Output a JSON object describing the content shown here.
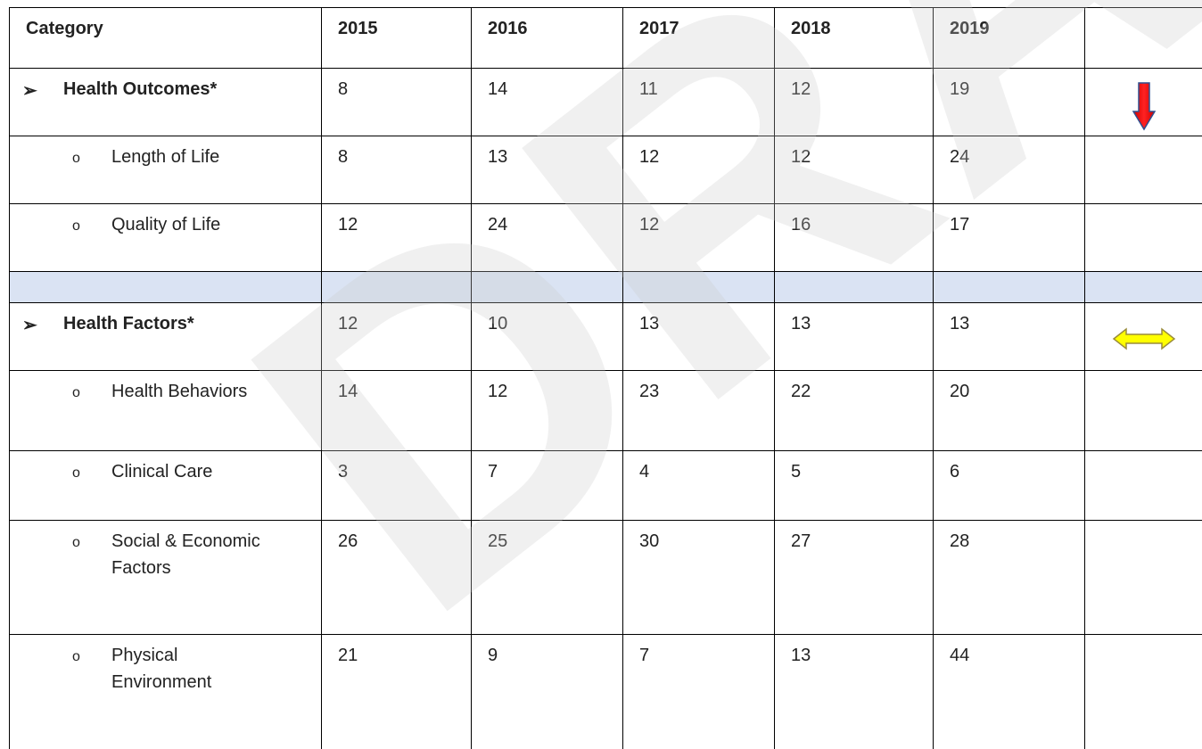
{
  "table": {
    "header": [
      "Category",
      "2015",
      "2016",
      "2017",
      "2018",
      "2019"
    ],
    "groups": [
      {
        "rows": [
          {
            "label": "Health Outcomes*",
            "values": [
              8,
              14,
              11,
              12,
              19
            ]
          },
          {
            "label": "Length of Life",
            "values": [
              8,
              13,
              12,
              12,
              24
            ]
          },
          {
            "label": "Quality of Life",
            "values": [
              12,
              24,
              12,
              16,
              17
            ]
          }
        ]
      },
      {
        "rows": [
          {
            "label": "Health Factors*",
            "values": [
              12,
              10,
              13,
              13,
              13
            ]
          },
          {
            "label": "Health Behaviors",
            "values": [
              14,
              12,
              23,
              22,
              20
            ]
          },
          {
            "label": "Clinical Care",
            "values": [
              3,
              7,
              4,
              5,
              6
            ]
          },
          {
            "label": "Social & Economic Factors",
            "values": [
              26,
              25,
              30,
              27,
              28
            ]
          },
          {
            "label": "Physical Environment",
            "values": [
              21,
              9,
              7,
              13,
              44
            ]
          }
        ]
      }
    ],
    "watermark": "DRAFT"
  }
}
